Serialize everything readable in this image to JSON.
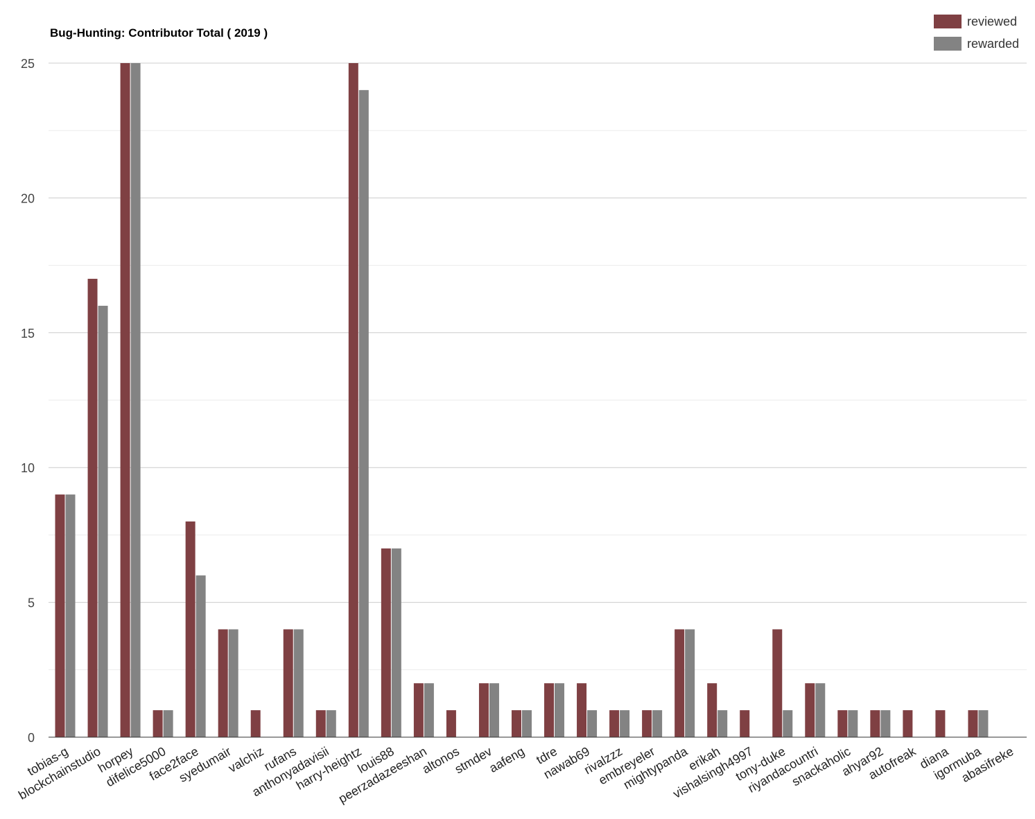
{
  "chart_data": {
    "type": "bar",
    "title": "Bug-Hunting: Contributor Total ( 2019 )",
    "xlabel": "",
    "ylabel": "",
    "ylim": [
      0,
      25
    ],
    "yticks": [
      0,
      5,
      10,
      15,
      20,
      25
    ],
    "grid": true,
    "legend_position": "top-right",
    "categories": [
      "tobias-g",
      "blockchainstudio",
      "horpey",
      "difelice5000",
      "face2face",
      "syedumair",
      "valchiz",
      "rufans",
      "anthonyadavisii",
      "harry-heightz",
      "louis88",
      "peerzadazeeshan",
      "altonos",
      "stmdev",
      "aafeng",
      "tdre",
      "nawab69",
      "rivalzzz",
      "embreyeler",
      "mightypanda",
      "erikah",
      "vishalsingh4997",
      "tony-duke",
      "riyandacountri",
      "snackaholic",
      "ahyar92",
      "autofreak",
      "diana",
      "igormuba",
      "abasifreke"
    ],
    "series": [
      {
        "name": "reviewed",
        "color": "#7f4043",
        "values": [
          9,
          17,
          25,
          1,
          8,
          4,
          1,
          4,
          1,
          25,
          7,
          2,
          1,
          2,
          1,
          2,
          2,
          1,
          1,
          4,
          2,
          1,
          4,
          2,
          1,
          1,
          1,
          1,
          1,
          0
        ]
      },
      {
        "name": "rewarded",
        "color": "#838383",
        "values": [
          9,
          16,
          25,
          1,
          6,
          4,
          0,
          4,
          1,
          24,
          7,
          2,
          0,
          2,
          1,
          2,
          1,
          1,
          1,
          4,
          1,
          0,
          1,
          2,
          1,
          1,
          0,
          0,
          1,
          0
        ]
      }
    ]
  }
}
